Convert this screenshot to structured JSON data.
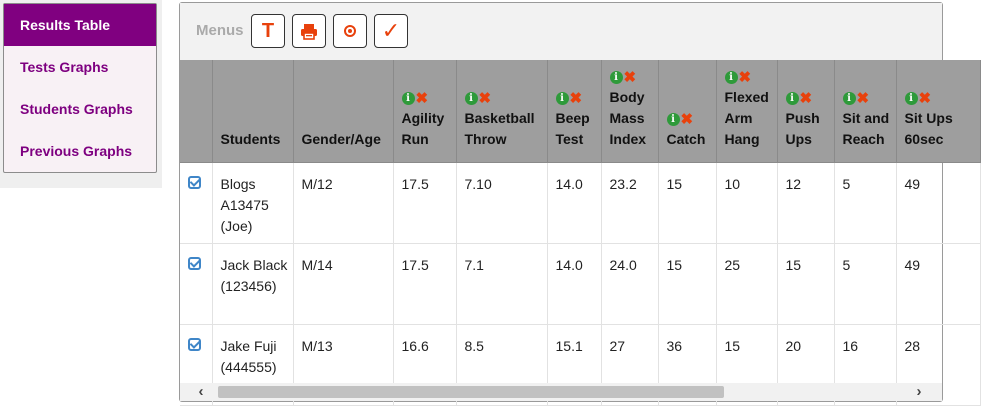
{
  "nav": {
    "items": [
      {
        "label": "Results Table",
        "active": true
      },
      {
        "label": "Tests Graphs",
        "active": false
      },
      {
        "label": "Students Graphs",
        "active": false
      },
      {
        "label": "Previous Graphs",
        "active": false
      }
    ]
  },
  "toolbar": {
    "menus_label": "Menus",
    "buttons": [
      {
        "icon": "text-t-icon",
        "glyph": "T"
      },
      {
        "icon": "printer-icon"
      },
      {
        "icon": "record-circle-icon"
      },
      {
        "icon": "checkmark-icon",
        "glyph": "✓"
      }
    ],
    "accent_color": "#e8410c"
  },
  "table": {
    "headers": {
      "students": "Students",
      "gender_age": "Gender/Age",
      "tests": [
        {
          "label": "Agility Run"
        },
        {
          "label": "Basketball Throw"
        },
        {
          "label": "Beep Test"
        },
        {
          "label": "Body Mass Index"
        },
        {
          "label": "Catch"
        },
        {
          "label": "Flexed Arm Hang"
        },
        {
          "label": "Push Ups"
        },
        {
          "label": "Sit and Reach"
        },
        {
          "label": "Sit Ups 60sec"
        }
      ],
      "info_glyph": "i",
      "remove_glyph": "✖"
    },
    "rows": [
      {
        "name": "Blogs A13475 (Joe)",
        "gender_age": "M/12",
        "values": [
          "17.5",
          "7.10",
          "14.0",
          "23.2",
          "15",
          "10",
          "12",
          "5",
          "49"
        ]
      },
      {
        "name": "Jack Black (123456)",
        "gender_age": "M/14",
        "values": [
          "17.5",
          "7.1",
          "14.0",
          "24.0",
          "15",
          "25",
          "15",
          "5",
          "49"
        ]
      },
      {
        "name": "Jake Fuji (444555)",
        "gender_age": "M/13",
        "values": [
          "16.6",
          "8.5",
          "15.1",
          "27",
          "36",
          "15",
          "20",
          "16",
          "28"
        ]
      }
    ]
  },
  "scrollbar": {
    "left_arrow": "‹",
    "right_arrow": "›"
  },
  "colors": {
    "nav_active": "#800080",
    "nav_text": "#7e0080",
    "header_bg": "#9e9e9e",
    "checkbox": "#3f86c8",
    "info_green": "#2e9a3a"
  }
}
